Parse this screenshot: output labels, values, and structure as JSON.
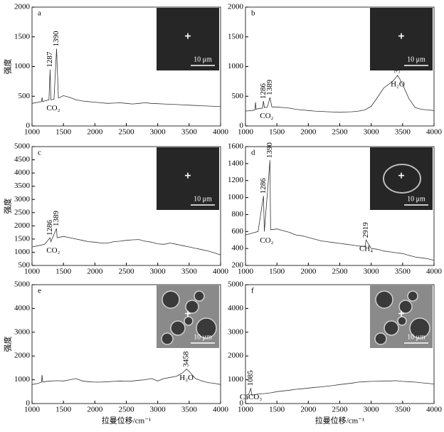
{
  "chart_data": [
    {
      "type": "line",
      "label": "a",
      "y_label": "强度",
      "inset_scale": "10 μm",
      "color": "#333",
      "x": [
        1000,
        1100,
        1150,
        1160,
        1170,
        1200,
        1270,
        1287,
        1300,
        1350,
        1390,
        1420,
        1500,
        1600,
        1700,
        1800,
        1900,
        2000,
        2100,
        2200,
        2300,
        2400,
        2500,
        2600,
        2700,
        2800,
        2900,
        3000,
        3100,
        3200,
        3300,
        3400,
        3500,
        3600,
        3700,
        3800,
        3900,
        4000
      ],
      "values": [
        380,
        400,
        410,
        480,
        410,
        420,
        440,
        950,
        440,
        450,
        1300,
        470,
        510,
        480,
        440,
        420,
        410,
        400,
        390,
        380,
        385,
        390,
        380,
        370,
        380,
        390,
        380,
        375,
        370,
        365,
        360,
        355,
        350,
        345,
        340,
        335,
        330,
        325
      ],
      "xlim": [
        1000,
        4000
      ],
      "xticks": [
        1000,
        1500,
        2000,
        2500,
        3000,
        3500,
        4000
      ],
      "ylim": [
        0,
        2000
      ],
      "yticks": [
        0,
        500,
        1000,
        1500,
        2000
      ],
      "peak_groups": [
        {
          "peaks": [
            1287,
            1390
          ],
          "species": "CO₂"
        }
      ]
    },
    {
      "type": "line",
      "label": "b",
      "inset_scale": "10 μm",
      "color": "#333",
      "x": [
        1000,
        1100,
        1150,
        1160,
        1170,
        1200,
        1270,
        1286,
        1300,
        1350,
        1389,
        1420,
        1500,
        1600,
        1700,
        1800,
        1900,
        2000,
        2100,
        2200,
        2300,
        2400,
        2500,
        2600,
        2700,
        2800,
        2900,
        3000,
        3100,
        3200,
        3300,
        3350,
        3422,
        3450,
        3500,
        3600,
        3700,
        3800,
        3900,
        4000
      ],
      "values": [
        250,
        260,
        270,
        400,
        280,
        290,
        300,
        420,
        310,
        320,
        480,
        320,
        320,
        310,
        300,
        280,
        270,
        260,
        250,
        245,
        240,
        235,
        230,
        235,
        240,
        250,
        270,
        330,
        480,
        640,
        720,
        760,
        850,
        800,
        700,
        460,
        310,
        280,
        270,
        260
      ],
      "xlim": [
        1000,
        4000
      ],
      "xticks": [
        1000,
        1500,
        2000,
        2500,
        3000,
        3500,
        4000
      ],
      "ylim": [
        0,
        2000
      ],
      "yticks": [
        0,
        500,
        1000,
        1500,
        2000
      ],
      "peak_groups": [
        {
          "peaks": [
            1286,
            1389
          ],
          "species": "CO₂"
        },
        {
          "peaks": [
            3422
          ],
          "species": "H₂O"
        }
      ]
    },
    {
      "type": "line",
      "label": "c",
      "y_label": "强度",
      "inset_scale": "10 μm",
      "color": "#333",
      "x": [
        1000,
        1100,
        1200,
        1286,
        1300,
        1389,
        1400,
        1500,
        1600,
        1700,
        1800,
        1900,
        2000,
        2100,
        2200,
        2300,
        2400,
        2500,
        2600,
        2700,
        2800,
        2900,
        3000,
        3100,
        3200,
        3300,
        3400,
        3500,
        3600,
        3700,
        3800,
        3900,
        4000
      ],
      "values": [
        1200,
        1250,
        1300,
        1550,
        1400,
        1900,
        1550,
        1600,
        1550,
        1500,
        1450,
        1400,
        1380,
        1350,
        1350,
        1400,
        1420,
        1450,
        1470,
        1480,
        1420,
        1380,
        1320,
        1300,
        1350,
        1300,
        1250,
        1200,
        1150,
        1100,
        1050,
        980,
        900
      ],
      "xlim": [
        1000,
        4000
      ],
      "xticks": [
        1000,
        1500,
        2000,
        2500,
        3000,
        3500,
        4000
      ],
      "ylim": [
        500,
        5000
      ],
      "yticks": [
        500,
        1000,
        1500,
        2000,
        2500,
        3000,
        3500,
        4000,
        4500,
        5000
      ],
      "peak_groups": [
        {
          "peaks": [
            1286,
            1389
          ],
          "species": "CO₂"
        }
      ]
    },
    {
      "type": "line",
      "label": "d",
      "inset_scale": "10 μm",
      "color": "#333",
      "x": [
        1000,
        1100,
        1200,
        1286,
        1300,
        1390,
        1400,
        1500,
        1600,
        1700,
        1800,
        1900,
        2000,
        2100,
        2200,
        2300,
        2400,
        2500,
        2600,
        2700,
        2800,
        2900,
        2919,
        3000,
        3100,
        3200,
        3300,
        3400,
        3500,
        3600,
        3700,
        3800,
        3900,
        4000
      ],
      "values": [
        560,
        580,
        600,
        1020,
        600,
        1440,
        620,
        630,
        610,
        590,
        560,
        550,
        530,
        510,
        490,
        480,
        470,
        460,
        450,
        440,
        430,
        420,
        500,
        400,
        390,
        370,
        360,
        350,
        340,
        320,
        300,
        290,
        280,
        260
      ],
      "xlim": [
        1000,
        4000
      ],
      "xticks": [
        1000,
        1500,
        2000,
        2500,
        3000,
        3500,
        4000
      ],
      "ylim": [
        200,
        1600
      ],
      "yticks": [
        200,
        400,
        600,
        800,
        1000,
        1200,
        1400,
        1600
      ],
      "peak_groups": [
        {
          "peaks": [
            1286,
            1390
          ],
          "species": "CO₂"
        },
        {
          "peaks": [
            2919
          ],
          "species": "CH₄"
        }
      ]
    },
    {
      "type": "line",
      "label": "e",
      "y_label": "强度",
      "x_label": "拉曼位移/cm⁻¹",
      "inset_scale": "10 μm",
      "color": "#333",
      "x": [
        1000,
        1100,
        1150,
        1160,
        1170,
        1200,
        1300,
        1400,
        1500,
        1600,
        1700,
        1800,
        1900,
        2000,
        2100,
        2200,
        2300,
        2400,
        2500,
        2600,
        2700,
        2800,
        2900,
        3000,
        3100,
        3200,
        3300,
        3400,
        3458,
        3500,
        3600,
        3700,
        3800,
        3900,
        4000
      ],
      "values": [
        800,
        850,
        900,
        1200,
        900,
        920,
        950,
        960,
        950,
        1000,
        1050,
        950,
        920,
        900,
        900,
        920,
        930,
        950,
        940,
        950,
        980,
        1000,
        1050,
        950,
        1050,
        1100,
        1150,
        1300,
        1450,
        1350,
        1050,
        950,
        880,
        850,
        800
      ],
      "xlim": [
        1000,
        4000
      ],
      "xticks": [
        1000,
        1500,
        2000,
        2500,
        3000,
        3500,
        4000
      ],
      "ylim": [
        0,
        5000
      ],
      "yticks": [
        0,
        1000,
        2000,
        3000,
        4000,
        5000
      ],
      "peak_groups": [
        {
          "peaks": [
            3458
          ],
          "species": "H₂O"
        }
      ]
    },
    {
      "type": "line",
      "label": "f",
      "x_label": "拉曼位移/cm⁻¹",
      "inset_scale": "10 μm",
      "color": "#333",
      "x": [
        1000,
        1050,
        1085,
        1100,
        1200,
        1300,
        1400,
        1500,
        1600,
        1700,
        1800,
        1900,
        2000,
        2100,
        2200,
        2300,
        2400,
        2500,
        2600,
        2700,
        2800,
        2900,
        3000,
        3100,
        3200,
        3300,
        3400,
        3500,
        3600,
        3700,
        3800,
        3900,
        4000
      ],
      "values": [
        350,
        380,
        650,
        350,
        400,
        420,
        450,
        500,
        530,
        560,
        600,
        620,
        650,
        680,
        700,
        730,
        760,
        800,
        830,
        860,
        900,
        920,
        930,
        940,
        950,
        950,
        960,
        930,
        920,
        900,
        870,
        850,
        820
      ],
      "xlim": [
        1000,
        4000
      ],
      "xticks": [
        1000,
        1500,
        2000,
        2500,
        3000,
        3500,
        4000
      ],
      "ylim": [
        0,
        5000
      ],
      "yticks": [
        0,
        1000,
        2000,
        3000,
        4000,
        5000
      ],
      "peak_groups": [
        {
          "peaks": [
            1085
          ],
          "species": "CaCO₃"
        }
      ]
    }
  ]
}
